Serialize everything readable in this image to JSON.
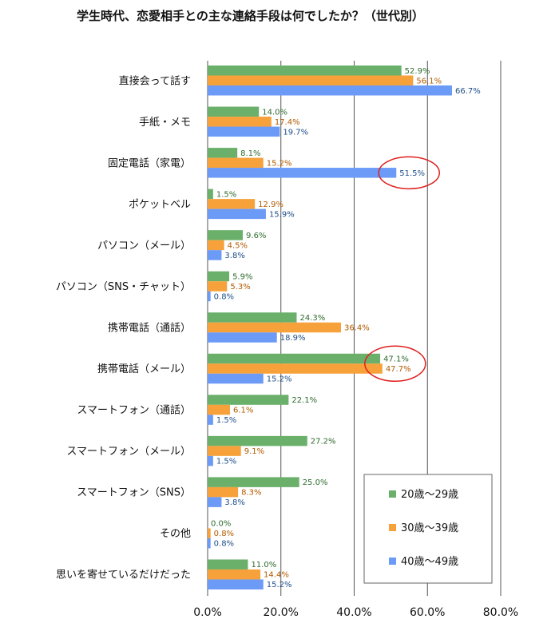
{
  "title": "学生時代、恋愛相手との主な連絡手段は何でしたか？（世代別）",
  "colors": {
    "series": [
      "#6ab06a",
      "#f7a13a",
      "#6b9af7"
    ],
    "value_text": [
      "#2e6b2e",
      "#b25a00",
      "#1f4f8a"
    ],
    "highlight": "#e02020",
    "gridline": "#555555"
  },
  "chart_data": {
    "type": "bar",
    "orientation": "horizontal",
    "title": "学生時代、恋愛相手との主な連絡手段は何でしたか？（世代別）",
    "categories": [
      "直接会って話す",
      "手紙・メモ",
      "固定電話（家電）",
      "ポケットベル",
      "パソコン（メール）",
      "パソコン（SNS・チャット）",
      "携帯電話（通話）",
      "携帯電話（メール）",
      "スマートフォン（通話）",
      "スマートフォン（メール）",
      "スマートフォン（SNS）",
      "その他",
      "思いを寄せているだけだった"
    ],
    "series": [
      {
        "name": "20歳～29歳",
        "values": [
          52.9,
          14.0,
          8.1,
          1.5,
          9.6,
          5.9,
          24.3,
          47.1,
          22.1,
          27.2,
          25.0,
          0.0,
          11.0
        ],
        "labels": [
          "52.9%",
          "14.0%",
          "8.1%",
          "1.5%",
          "9.6%",
          "5.9%",
          "24.3%",
          "47.1%",
          "22.1%",
          "27.2%",
          "25.0%",
          "0.0%",
          "11.0%"
        ]
      },
      {
        "name": "30歳～39歳",
        "values": [
          56.1,
          17.4,
          15.2,
          12.9,
          4.5,
          5.3,
          36.4,
          47.7,
          6.1,
          9.1,
          8.3,
          0.8,
          14.4
        ],
        "labels": [
          "56.1%",
          "17.4%",
          "15.2%",
          "12.9%",
          "4.5%",
          "5.3%",
          "36.4%",
          "47.7%",
          "6.1%",
          "9.1%",
          "8.3%",
          "0.8%",
          "14.4%"
        ]
      },
      {
        "name": "40歳～49歳",
        "values": [
          66.7,
          19.7,
          51.5,
          15.9,
          3.8,
          0.8,
          18.9,
          15.2,
          1.5,
          1.5,
          3.8,
          0.8,
          15.2
        ],
        "labels": [
          "66.7%",
          "19.7%",
          "51.5%",
          "15.9%",
          "3.8%",
          "0.8%",
          "18.9%",
          "15.2%",
          "1.5%",
          "1.5%",
          "3.8%",
          "0.8%",
          "15.2%"
        ]
      }
    ],
    "xlim": [
      0,
      80
    ],
    "xticks": [
      0,
      20,
      40,
      60,
      80
    ],
    "xtick_labels": [
      "0.0%",
      "20.0%",
      "40.0%",
      "60.0%",
      "80.0%"
    ],
    "grid": true,
    "legend_position": "bottom-right",
    "highlights": [
      {
        "category_index": 2,
        "series_index": [
          2
        ]
      },
      {
        "category_index": 7,
        "series_index": [
          0,
          1
        ]
      }
    ]
  }
}
